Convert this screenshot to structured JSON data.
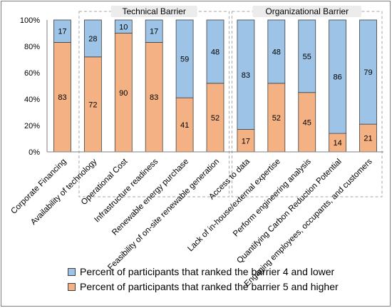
{
  "chart_data": {
    "type": "bar",
    "stacked": true,
    "categories": [
      "Corporate Financing",
      "Availability of technology",
      "Operational Cost",
      "Infrastructure readiness",
      "Renewable energy purchase",
      "Feasibility of on-site renewable generation",
      "Access to data",
      "Lack of in-house/external expertise",
      "Perform engineering analysis",
      "Quantifying Carbon Reduction Potential",
      "Engaging employees, occupants, and customers"
    ],
    "series": [
      {
        "name": "Percent of participants that ranked the barrier 5 and higher",
        "color": "#f4b183",
        "values": [
          83,
          72,
          90,
          83,
          41,
          52,
          17,
          52,
          45,
          14,
          21
        ]
      },
      {
        "name": "Percent of participants that ranked the barrier 4 and lower",
        "color": "#9dc3e6",
        "values": [
          17,
          28,
          10,
          17,
          59,
          48,
          83,
          48,
          55,
          86,
          79
        ]
      }
    ],
    "yticks": [
      "0%",
      "20%",
      "40%",
      "60%",
      "80%",
      "100%"
    ],
    "ylim": [
      0,
      100
    ],
    "groups": [
      {
        "label": "Technical Barrier",
        "start": 1,
        "end": 5
      },
      {
        "label": "Organizational Barrier",
        "start": 6,
        "end": 10
      }
    ],
    "grid": false,
    "legend_position": "bottom"
  }
}
